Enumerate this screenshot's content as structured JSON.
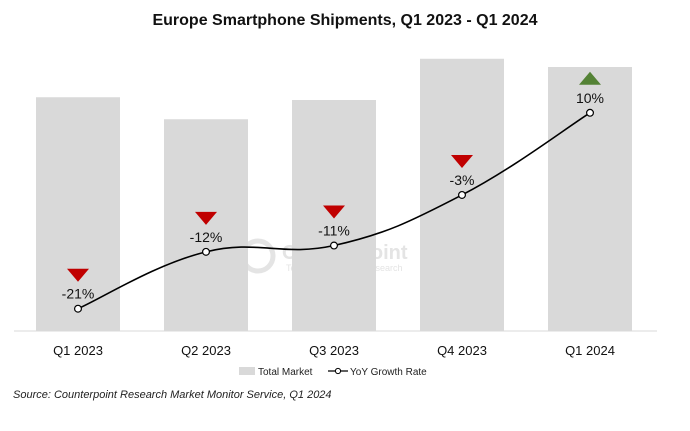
{
  "chart_data": {
    "type": "bar",
    "title": "Europe Smartphone Shipments, Q1 2023 - Q1 2024",
    "categories": [
      "Q1 2023",
      "Q2 2023",
      "Q3 2023",
      "Q4 2023",
      "Q1 2024"
    ],
    "series": [
      {
        "name": "Total Market",
        "type": "bar",
        "values": [
          85,
          77,
          84,
          99,
          96
        ],
        "color": "#d9d9d9"
      },
      {
        "name": "YoY Growth Rate",
        "type": "line",
        "values": [
          -21,
          -12,
          -11,
          -3,
          10
        ],
        "labels": [
          "-21%",
          "-12%",
          "-11%",
          "-3%",
          "10%"
        ],
        "color": "#000000"
      }
    ],
    "trend_markers": [
      "down",
      "down",
      "down",
      "down",
      "up"
    ],
    "marker_colors": {
      "down": "#c00000",
      "up": "#548235"
    },
    "legend_position": "bottom",
    "grid": false,
    "watermark": {
      "name": "Counterpoint",
      "tagline": "Technology Market Research"
    },
    "source": "Source: Counterpoint Research Market Monitor Service, Q1 2024"
  }
}
